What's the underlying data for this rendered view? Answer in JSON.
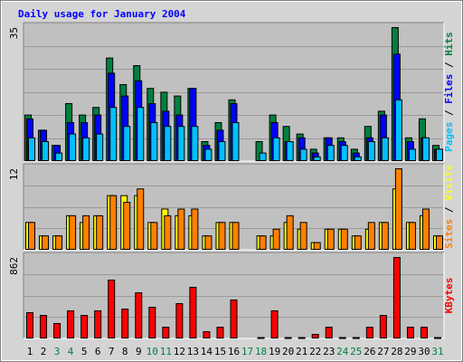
{
  "chart_data": {
    "type": "bar",
    "title": "Daily usage for January 2004",
    "legend_separator": " / ",
    "categories": [
      "1",
      "2",
      "3",
      "4",
      "5",
      "6",
      "7",
      "8",
      "9",
      "10",
      "11",
      "12",
      "13",
      "14",
      "15",
      "16",
      "17",
      "18",
      "19",
      "20",
      "21",
      "22",
      "23",
      "24",
      "25",
      "26",
      "27",
      "28",
      "29",
      "30",
      "31"
    ],
    "category_colors": [
      "#000000",
      "#000000",
      "#008040",
      "#008040",
      "#000000",
      "#000000",
      "#000000",
      "#000000",
      "#000000",
      "#008040",
      "#008040",
      "#000000",
      "#000000",
      "#000000",
      "#000000",
      "#000000",
      "#008040",
      "#008040",
      "#000000",
      "#000000",
      "#000000",
      "#000000",
      "#000000",
      "#008040",
      "#008040",
      "#000000",
      "#000000",
      "#000000",
      "#000000",
      "#000000",
      "#008040"
    ],
    "panels": [
      {
        "ylim": [
          0,
          35
        ],
        "yticks": [
          35
        ],
        "legend_order": [
          2,
          1,
          0
        ],
        "series": [
          {
            "name": "Hits",
            "color": "#008040",
            "values": [
              12,
              8,
              4,
              15,
              12,
              14,
              27,
              20,
              25,
              19,
              18,
              17,
              19,
              5,
              10,
              16,
              0,
              5,
              12,
              9,
              7,
              3,
              6,
              6,
              3,
              9,
              13,
              35,
              6,
              11,
              4
            ]
          },
          {
            "name": "Files",
            "color": "#0000ff",
            "values": [
              11,
              8,
              4,
              10,
              10,
              12,
              23,
              17,
              21,
              15,
              13,
              12,
              19,
              4,
              8,
              15,
              0,
              0,
              10,
              5,
              6,
              2,
              6,
              5,
              2,
              6,
              12,
              28,
              5,
              6,
              3
            ]
          },
          {
            "name": "Pages",
            "color": "#00c0ff",
            "values": [
              6,
              5,
              2,
              7,
              6,
              7,
              14,
              9,
              14,
              10,
              9,
              9,
              9,
              3,
              5,
              10,
              0,
              2,
              6,
              5,
              3,
              1,
              4,
              4,
              1,
              5,
              6,
              16,
              3,
              6,
              3
            ]
          }
        ]
      },
      {
        "ylim": [
          0,
          12
        ],
        "yticks": [
          12
        ],
        "legend_order": [
          1,
          0
        ],
        "series": [
          {
            "name": "Visits",
            "color": "#ffff00",
            "values": [
              4,
              2,
              2,
              5,
              4,
              5,
              8,
              8,
              8,
              4,
              6,
              5,
              5,
              2,
              4,
              4,
              0,
              2,
              2,
              4,
              3,
              1,
              3,
              3,
              2,
              3,
              4,
              9,
              4,
              5,
              2
            ]
          },
          {
            "name": "Sites",
            "color": "#ff8000",
            "values": [
              4,
              2,
              2,
              5,
              5,
              5,
              8,
              7,
              9,
              4,
              5,
              6,
              6,
              2,
              4,
              4,
              0,
              2,
              3,
              5,
              4,
              1,
              3,
              3,
              2,
              4,
              4,
              12,
              4,
              6,
              2
            ]
          }
        ]
      },
      {
        "ylim": [
          0,
          862
        ],
        "yticks": [
          862
        ],
        "legend_order": [
          0
        ],
        "series": [
          {
            "name": "KBytes",
            "color": "#ff0000",
            "values": [
              271,
              242,
              155,
              291,
              242,
              291,
              620,
              310,
              484,
              329,
              116,
              368,
              543,
              68,
              116,
              407,
              0,
              5,
              291,
              5,
              5,
              39,
              116,
              5,
              5,
              116,
              242,
              862,
              116,
              116,
              5
            ]
          }
        ]
      }
    ]
  }
}
